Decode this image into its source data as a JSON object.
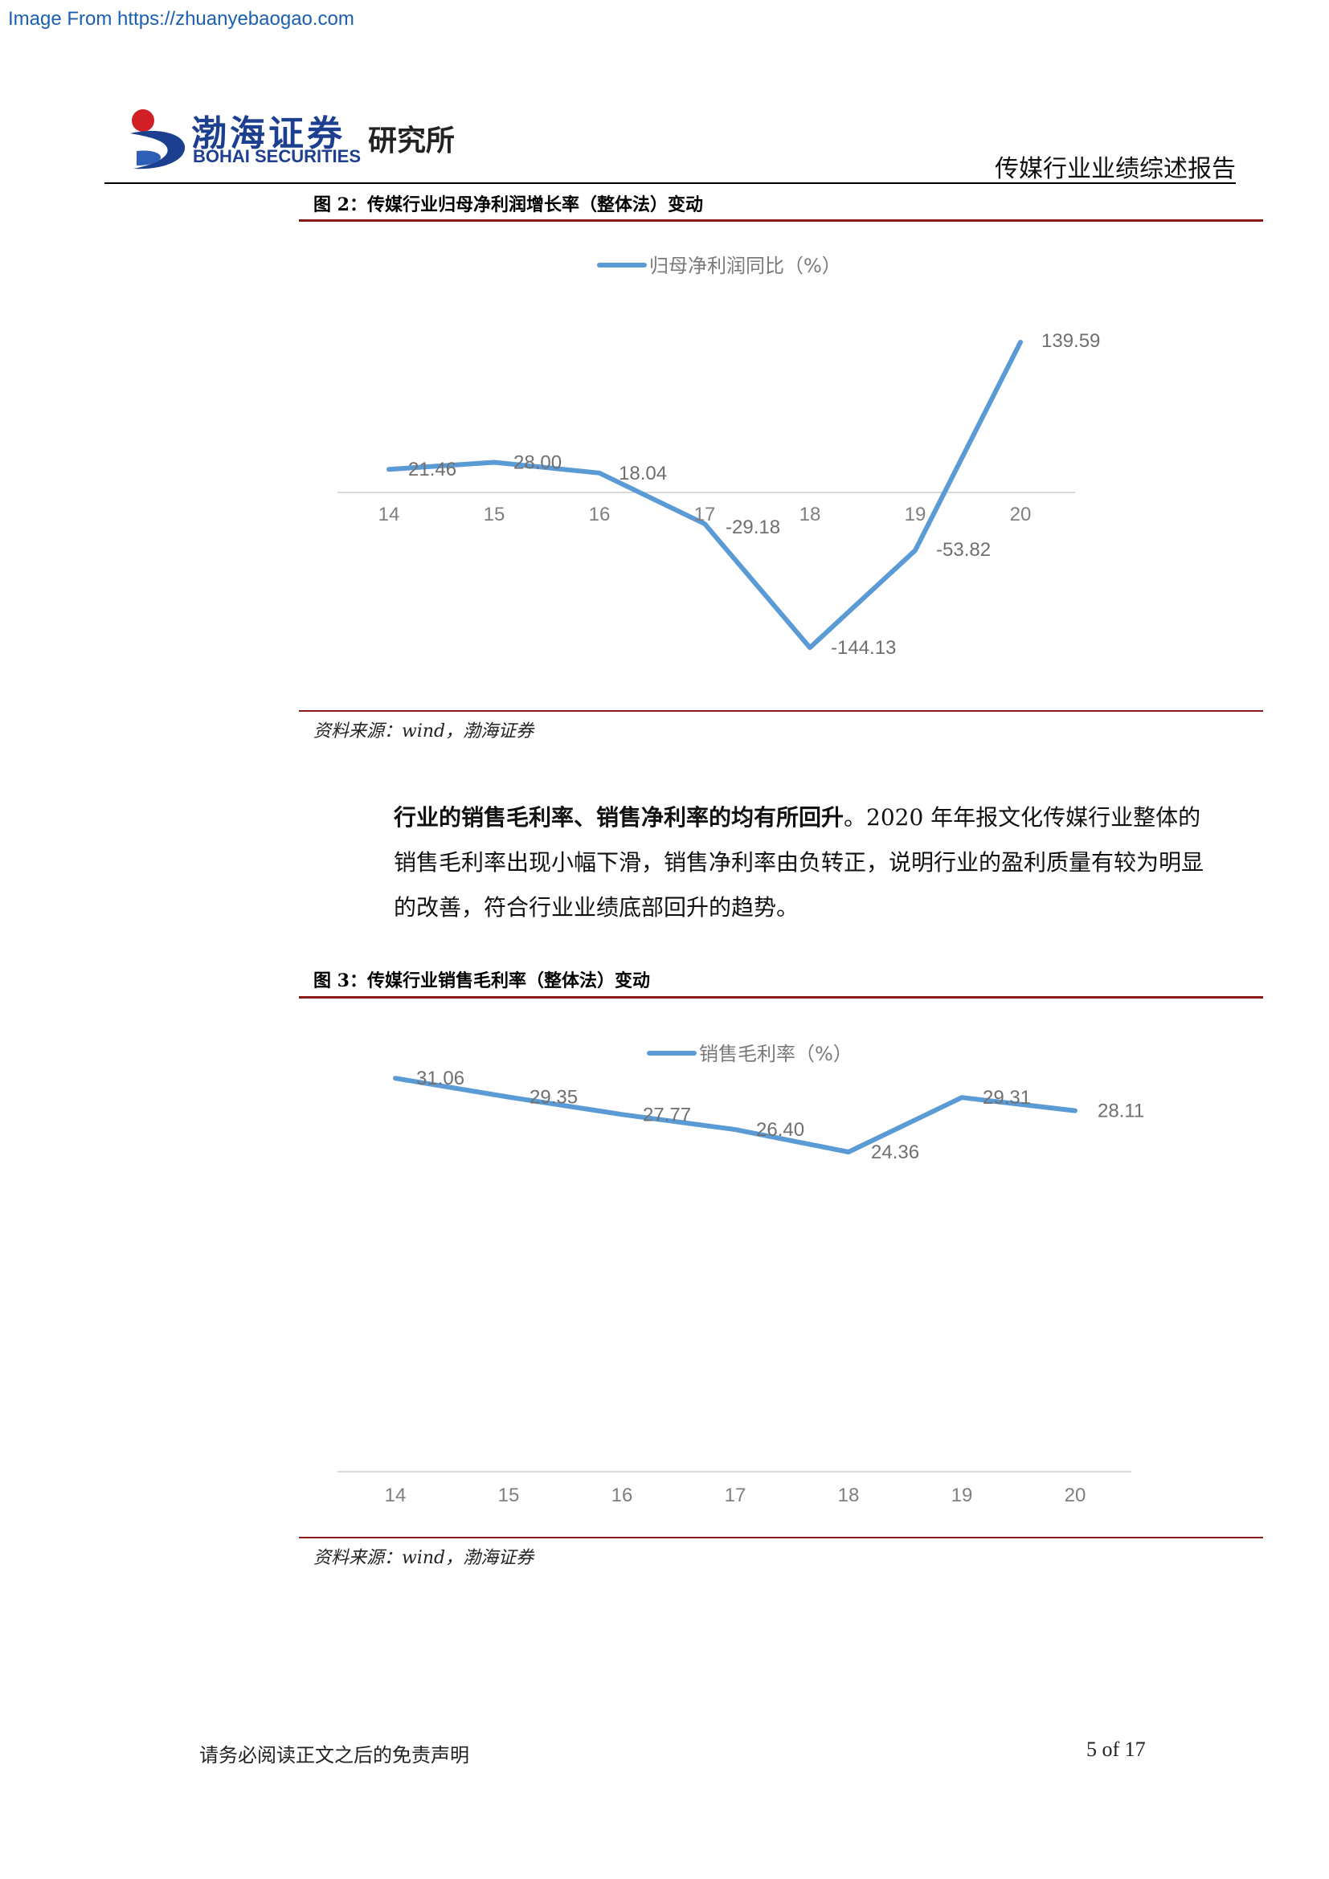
{
  "source_link": "Image From https://zhuanyebaogao.com",
  "header": {
    "logo_cn": "渤海证券",
    "logo_en": "BOHAI SECURITIES",
    "logo_institute": "研究所",
    "report_title": "传媒行业业绩综述报告"
  },
  "figure2": {
    "caption": "图 2：传媒行业归母净利润增长率（整体法）变动",
    "source": "资料来源：wind，渤海证券"
  },
  "paragraph": {
    "bold": "行业的销售毛利率、销售净利率的均有所回升",
    "rest": "。2020 年年报文化传媒行业整体的销售毛利率出现小幅下滑，销售净利率由负转正，说明行业的盈利质量有较为明显的改善，符合行业业绩底部回升的趋势。"
  },
  "figure3": {
    "caption": "图 3：传媒行业销售毛利率（整体法）变动",
    "source": "资料来源：wind，渤海证券"
  },
  "chart_data": [
    {
      "type": "line",
      "categories": [
        "14",
        "15",
        "16",
        "17",
        "18",
        "19",
        "20"
      ],
      "series": [
        {
          "name": "归母净利润同比（%）",
          "values": [
            21.46,
            28.0,
            18.04,
            -29.18,
            -144.13,
            -53.82,
            139.59
          ]
        }
      ],
      "data_labels": [
        "21.46",
        "28.00",
        "18.04",
        "-29.18",
        "-144.13",
        "-53.82",
        "139.59"
      ],
      "legend": "top",
      "line_color": "#5b9bd5",
      "grid": false
    },
    {
      "type": "line",
      "categories": [
        "14",
        "15",
        "16",
        "17",
        "18",
        "19",
        "20"
      ],
      "series": [
        {
          "name": "销售毛利率（%）",
          "values": [
            31.06,
            29.35,
            27.77,
            26.4,
            24.36,
            29.31,
            28.11
          ]
        }
      ],
      "data_labels": [
        "31.06",
        "29.35",
        "27.77",
        "26.40",
        "24.36",
        "29.31",
        "28.11"
      ],
      "legend": "top",
      "line_color": "#5b9bd5",
      "grid": false
    }
  ],
  "footer": {
    "disclaimer": "请务必阅读正文之后的免责声明",
    "page": "5 of 17"
  }
}
